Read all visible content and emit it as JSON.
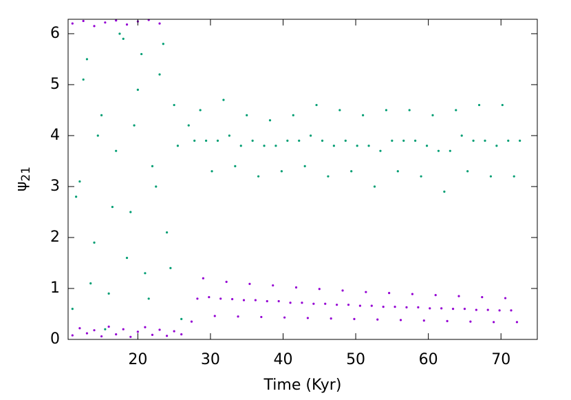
{
  "chart_data": {
    "type": "scatter",
    "x_label": "Time (Kyr)",
    "y_label": {
      "symbol": "ψ",
      "subscript": "21"
    },
    "xlim": [
      10.4,
      75
    ],
    "ylim": [
      0,
      6.283
    ],
    "xticks": [
      20,
      30,
      40,
      50,
      60,
      70
    ],
    "yticks": [
      0,
      1,
      2,
      3,
      4,
      5,
      6
    ],
    "series": [
      {
        "color": "#009e73",
        "x": [
          11,
          12,
          13,
          14,
          15,
          16,
          17,
          18,
          19,
          20,
          21,
          22,
          23,
          24,
          25,
          26,
          11.5,
          12.5,
          13.5,
          14.5,
          15.5,
          16.5,
          17.5,
          18.5,
          19.5,
          20.5,
          21.5,
          22.5,
          23.5,
          24.5,
          25.5,
          27.0,
          27.8,
          28.6,
          29.4,
          30.2,
          31.0,
          31.8,
          32.6,
          33.4,
          34.2,
          35.0,
          35.8,
          36.6,
          37.4,
          38.2,
          39.0,
          39.8,
          40.6,
          41.4,
          42.2,
          43.0,
          43.8,
          44.6,
          45.4,
          46.2,
          47.0,
          47.8,
          48.6,
          49.4,
          50.2,
          51.0,
          51.8,
          52.6,
          53.4,
          54.2,
          55.0,
          55.8,
          56.6,
          57.4,
          58.2,
          59.0,
          59.8,
          60.6,
          61.4,
          62.2,
          63.0,
          63.8,
          64.6,
          65.4,
          66.2,
          67.0,
          67.8,
          68.6,
          69.4,
          70.2,
          71.0,
          71.8,
          72.6
        ],
        "values": [
          0.6,
          3.1,
          5.5,
          1.9,
          4.4,
          0.9,
          3.7,
          5.9,
          2.5,
          4.9,
          1.3,
          3.4,
          5.2,
          2.1,
          4.6,
          0.4,
          2.8,
          5.1,
          1.1,
          4.0,
          0.2,
          2.6,
          6.0,
          1.6,
          4.2,
          5.6,
          0.8,
          3.0,
          5.8,
          1.4,
          3.8,
          4.2,
          3.9,
          4.5,
          3.9,
          3.3,
          3.9,
          4.7,
          4.0,
          3.4,
          3.8,
          4.4,
          3.9,
          3.2,
          3.8,
          4.3,
          3.8,
          3.3,
          3.9,
          4.4,
          3.9,
          3.4,
          4.0,
          4.6,
          3.9,
          3.2,
          3.8,
          4.5,
          3.9,
          3.3,
          3.8,
          4.4,
          3.8,
          3.0,
          3.7,
          4.5,
          3.9,
          3.3,
          3.9,
          4.5,
          3.9,
          3.2,
          3.8,
          4.4,
          3.7,
          2.9,
          3.7,
          4.5,
          4.0,
          3.3,
          3.9,
          4.6,
          3.9,
          3.2,
          3.8,
          4.6,
          3.9,
          3.2,
          3.9
        ]
      },
      {
        "color": "#9400d3",
        "x": [
          11,
          12,
          13,
          14,
          15,
          16,
          17,
          18,
          19,
          20,
          21,
          22,
          23,
          24,
          25,
          26,
          11,
          12.5,
          14,
          15.5,
          17,
          18.5,
          20,
          21.5,
          23,
          27.4,
          28.2,
          29.0,
          29.8,
          30.6,
          31.4,
          32.2,
          33.0,
          33.8,
          34.6,
          35.4,
          36.2,
          37.0,
          37.8,
          38.6,
          39.4,
          40.2,
          41.0,
          41.8,
          42.6,
          43.4,
          44.2,
          45.0,
          45.8,
          46.6,
          47.4,
          48.2,
          49.0,
          49.8,
          50.6,
          51.4,
          52.2,
          53.0,
          53.8,
          54.6,
          55.4,
          56.2,
          57.0,
          57.8,
          58.6,
          59.4,
          60.2,
          61.0,
          61.8,
          62.6,
          63.4,
          64.2,
          65.0,
          65.8,
          66.6,
          67.4,
          68.2,
          69.0,
          69.8,
          70.6,
          71.4,
          72.2
        ],
        "values": [
          0.08,
          0.22,
          0.12,
          0.18,
          0.06,
          0.25,
          0.1,
          0.2,
          0.05,
          0.15,
          0.24,
          0.09,
          0.19,
          0.07,
          0.16,
          0.1,
          6.2,
          6.25,
          6.15,
          6.22,
          6.26,
          6.18,
          6.24,
          6.27,
          6.2,
          0.35,
          0.8,
          1.2,
          0.83,
          0.46,
          0.8,
          1.13,
          0.79,
          0.45,
          0.77,
          1.09,
          0.77,
          0.44,
          0.75,
          1.06,
          0.75,
          0.43,
          0.72,
          1.02,
          0.72,
          0.42,
          0.7,
          0.99,
          0.7,
          0.41,
          0.68,
          0.96,
          0.68,
          0.4,
          0.66,
          0.93,
          0.66,
          0.39,
          0.64,
          0.91,
          0.64,
          0.38,
          0.63,
          0.89,
          0.63,
          0.37,
          0.61,
          0.87,
          0.61,
          0.36,
          0.6,
          0.85,
          0.6,
          0.35,
          0.58,
          0.83,
          0.58,
          0.34,
          0.57,
          0.81,
          0.57,
          0.34
        ]
      }
    ]
  }
}
